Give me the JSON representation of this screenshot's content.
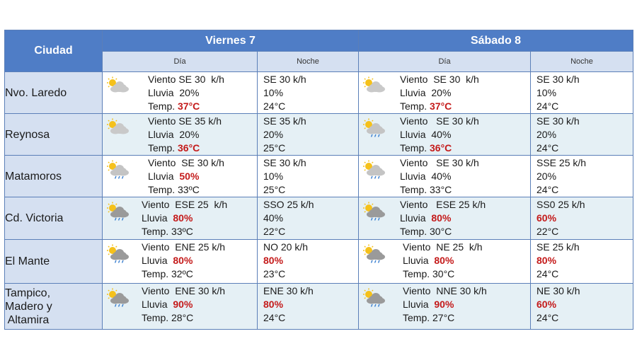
{
  "header": {
    "city_label": "Ciudad",
    "days": [
      {
        "title": "Viernes 7",
        "day_label": "Día",
        "night_label": "Noche"
      },
      {
        "title": "Sábado 8",
        "day_label": "Día",
        "night_label": "Noche"
      }
    ]
  },
  "rows": [
    {
      "city": "Nvo. Laredo",
      "d1": {
        "icon": "sun-cloud-icon",
        "wind": "Viento SE 30  k/h",
        "rain_label": "Lluvia",
        "rain": "20%",
        "rain_hot": false,
        "temp_label": "Temp.",
        "temp": "37°C",
        "temp_hot": true
      },
      "n1": {
        "wind": "SE 30 k/h",
        "rain": "10%",
        "rain_hot": false,
        "temp": "24°C"
      },
      "d2": {
        "icon": "sun-cloud-icon",
        "wind": "Viento  SE 30  k/h",
        "rain_label": "Lluvia",
        "rain": "20%",
        "rain_hot": false,
        "temp_label": "Temp.",
        "temp": "37°C",
        "temp_hot": true
      },
      "n2": {
        "wind": "SE 30 k/h",
        "rain": "10%",
        "rain_hot": false,
        "temp": "24°C"
      }
    },
    {
      "city": "Reynosa",
      "d1": {
        "icon": "sun-cloud-icon",
        "wind": "Viento SE 35 k/h",
        "rain_label": "Lluvia",
        "rain": "20%",
        "rain_hot": false,
        "temp_label": "Temp.",
        "temp": "36°C",
        "temp_hot": true
      },
      "n1": {
        "wind": "SE 35 k/h",
        "rain": "20%",
        "rain_hot": false,
        "temp": "25°C"
      },
      "d2": {
        "icon": "sun-cloud-rain-icon",
        "wind": "Viento   SE 30 k/h",
        "rain_label": "Lluvia",
        "rain": "40%",
        "rain_hot": false,
        "temp_label": "Temp.",
        "temp": "36°C",
        "temp_hot": true
      },
      "n2": {
        "wind": "SE 30 k/h",
        "rain": "20%",
        "rain_hot": false,
        "temp": "24°C"
      }
    },
    {
      "city": "Matamoros",
      "d1": {
        "icon": "sun-cloud-rain-icon",
        "wind": "Viento  SE 30 k/h",
        "rain_label": "Lluvia",
        "rain": "50%",
        "rain_hot": true,
        "temp_label": "Temp.",
        "temp": "33ºC",
        "temp_hot": false
      },
      "n1": {
        "wind": "SE 30 k/h",
        "rain": "10%",
        "rain_hot": false,
        "temp": "25°C"
      },
      "d2": {
        "icon": "sun-cloud-rain-icon",
        "wind": "Viento   SE 30 k/h",
        "rain_label": "Lluvia",
        "rain": "40%",
        "rain_hot": false,
        "temp_label": "Temp.",
        "temp": "33°C",
        "temp_hot": false
      },
      "n2": {
        "wind": "SSE 25 k/h",
        "rain": "20%",
        "rain_hot": false,
        "temp": "24°C"
      }
    },
    {
      "city": "Cd. Victoria",
      "d1": {
        "icon": "storm-cloud-icon",
        "wind": "Viento  ESE 25  k/h",
        "rain_label": "Lluvia",
        "rain": "80%",
        "rain_hot": true,
        "temp_label": "Temp.",
        "temp": "33ºC",
        "temp_hot": false
      },
      "n1": {
        "wind": "SSO 25 k/h",
        "rain": "40%",
        "rain_hot": false,
        "temp": "22°C"
      },
      "d2": {
        "icon": "storm-cloud-icon",
        "wind": "Viento   ESE 25 k/h",
        "rain_label": "Lluvia",
        "rain": "80%",
        "rain_hot": true,
        "temp_label": "Temp.",
        "temp": "30°C",
        "temp_hot": false
      },
      "n2": {
        "wind": "SS0 25 k/h",
        "rain": "60%",
        "rain_hot": true,
        "temp": "22°C"
      }
    },
    {
      "city": "El Mante",
      "d1": {
        "icon": "storm-cloud-icon",
        "wind": "Viento  ENE 25 k/h",
        "rain_label": "Lluvia",
        "rain": "80%",
        "rain_hot": true,
        "temp_label": "Temp.",
        "temp": "32ºC",
        "temp_hot": false
      },
      "n1": {
        "wind": "NO 20 k/h",
        "rain": "80%",
        "rain_hot": true,
        "temp": "23°C"
      },
      "d2": {
        "icon": "storm-cloud-icon",
        "wind": "Viento  NE 25  k/h",
        "rain_label": "Lluvia",
        "rain": "80%",
        "rain_hot": true,
        "temp_label": "Temp.",
        "temp": "30°C",
        "temp_hot": false
      },
      "n2": {
        "wind": "SE 25 k/h",
        "rain": "80%",
        "rain_hot": true,
        "temp": "24°C"
      }
    },
    {
      "city": "Tampico, Madero y Altamira",
      "city_lines": [
        "Tampico,",
        "Madero y",
        " Altamira"
      ],
      "d1": {
        "icon": "storm-cloud-icon",
        "wind": "Viento  ENE 30 k/h",
        "rain_label": "Lluvia",
        "rain": "90%",
        "rain_hot": true,
        "temp_label": "Temp.",
        "temp": "28°C",
        "temp_hot": false
      },
      "n1": {
        "wind": "ENE 30 k/h",
        "rain": "80%",
        "rain_hot": true,
        "temp": "24°C"
      },
      "d2": {
        "icon": "storm-cloud-icon",
        "wind": "Viento  NNE 30 k/h",
        "rain_label": "Lluvia",
        "rain": "90%",
        "rain_hot": true,
        "temp_label": "Temp.",
        "temp": "27°C",
        "temp_hot": false
      },
      "n2": {
        "wind": "NE 30 k/h",
        "rain": "60%",
        "rain_hot": true,
        "temp": "24°C"
      }
    }
  ],
  "colors": {
    "header_blue": "#4f7dc6",
    "subheader_blue": "#d5e0f1",
    "row_tint": "#e5f0f5",
    "hot_red": "#c41a1a",
    "border": "#5b7fb8"
  }
}
